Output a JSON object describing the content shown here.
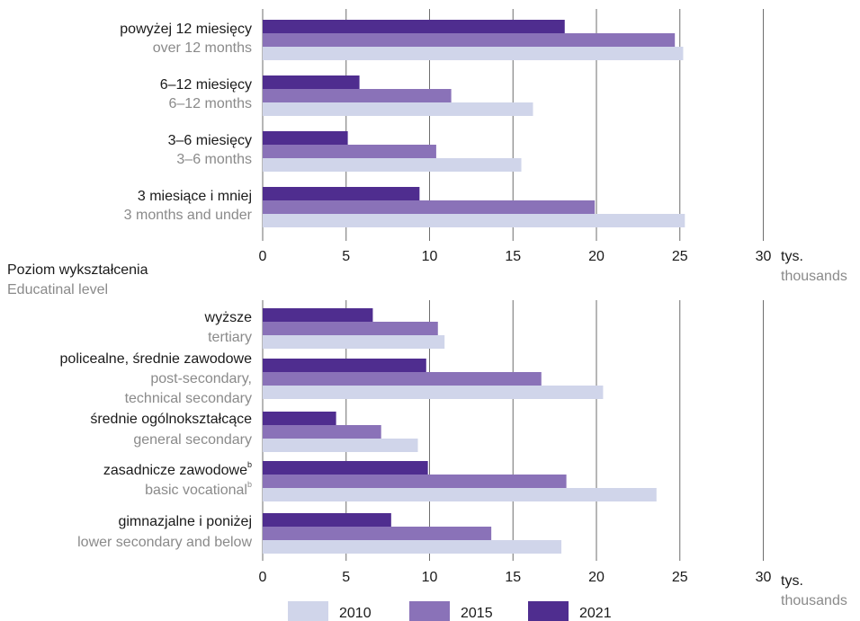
{
  "chart_data": [
    {
      "type": "bar",
      "orientation": "horizontal",
      "categories": [
        {
          "pl": "powyżej 12 miesięcy",
          "en": "over 12 months"
        },
        {
          "pl": "6–12 miesięcy",
          "en": "6–12 months"
        },
        {
          "pl": "3–6 miesięcy",
          "en": "3–6 months"
        },
        {
          "pl": "3 miesiące i mniej",
          "en": "3 months and under"
        }
      ],
      "series": [
        {
          "name": "2021",
          "color": "#4f2d8f",
          "values": [
            18.1,
            5.8,
            5.1,
            9.4
          ]
        },
        {
          "name": "2015",
          "color": "#8a72b8",
          "values": [
            24.7,
            11.3,
            10.4,
            19.9
          ]
        },
        {
          "name": "2010",
          "color": "#d0d5ea",
          "values": [
            25.2,
            16.2,
            15.5,
            25.3
          ]
        }
      ],
      "xlim": [
        0,
        30
      ],
      "ticks": [
        "0",
        "5",
        "10",
        "15",
        "20",
        "25",
        "30"
      ],
      "unit": {
        "pl": "tys.",
        "en": "thousands"
      },
      "grid": true
    },
    {
      "type": "bar",
      "orientation": "horizontal",
      "section_title": {
        "pl": "Poziom wykształcenia",
        "en": "Educatinal level"
      },
      "categories": [
        {
          "pl": "wyższe",
          "en": [
            "tertiary"
          ]
        },
        {
          "pl": "policealne, średnie zawodowe",
          "en": [
            "post-secondary,",
            "technical secondary"
          ]
        },
        {
          "pl": "średnie ogólnokształcące",
          "en": [
            "general secondary"
          ]
        },
        {
          "pl": "zasadnicze zawodowe",
          "pl_sup": "b",
          "en": [
            "basic vocational"
          ],
          "en_sup": "b"
        },
        {
          "pl": "gimnazjalne i poniżej",
          "en": [
            "lower secondary and below"
          ]
        }
      ],
      "series": [
        {
          "name": "2021",
          "color": "#4f2d8f",
          "values": [
            6.6,
            9.8,
            4.4,
            9.9,
            7.7
          ]
        },
        {
          "name": "2015",
          "color": "#8a72b8",
          "values": [
            10.5,
            16.7,
            7.1,
            18.2,
            13.7
          ]
        },
        {
          "name": "2010",
          "color": "#d0d5ea",
          "values": [
            10.9,
            20.4,
            9.3,
            23.6,
            17.9
          ]
        }
      ],
      "xlim": [
        0,
        30
      ],
      "ticks": [
        "0",
        "5",
        "10",
        "15",
        "20",
        "25",
        "30"
      ],
      "unit": {
        "pl": "tys.",
        "en": "thousands"
      },
      "grid": true
    }
  ],
  "legend": [
    {
      "label": "2010",
      "color": "#d0d5ea"
    },
    {
      "label": "2015",
      "color": "#8a72b8"
    },
    {
      "label": "2021",
      "color": "#4f2d8f"
    }
  ]
}
